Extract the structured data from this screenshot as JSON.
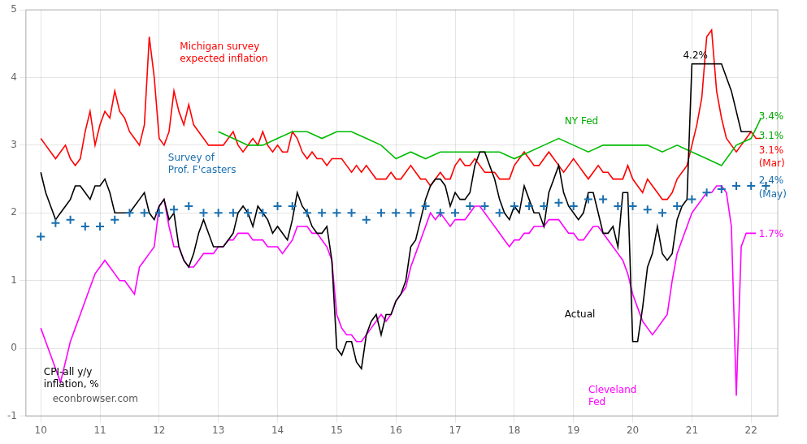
{
  "chart_data": {
    "type": "line",
    "xlim": [
      9.75,
      22.45
    ],
    "ylim": [
      -1.0,
      5.0
    ],
    "xticks": [
      10,
      11,
      12,
      13,
      14,
      15,
      16,
      17,
      18,
      19,
      20,
      21,
      22
    ],
    "yticks": [
      -1,
      0,
      1,
      2,
      3,
      4,
      5
    ],
    "grid": true,
    "series": [
      {
        "color": "red",
        "x": [
          10.0,
          10.083,
          10.167,
          10.25,
          10.333,
          10.417,
          10.5,
          10.583,
          10.667,
          10.75,
          10.833,
          10.917,
          11.0,
          11.083,
          11.167,
          11.25,
          11.333,
          11.417,
          11.5,
          11.583,
          11.667,
          11.75,
          11.833,
          11.917,
          12.0,
          12.083,
          12.167,
          12.25,
          12.333,
          12.417,
          12.5,
          12.583,
          12.667,
          12.75,
          12.833,
          12.917,
          13.0,
          13.083,
          13.167,
          13.25,
          13.333,
          13.417,
          13.5,
          13.583,
          13.667,
          13.75,
          13.833,
          13.917,
          14.0,
          14.083,
          14.167,
          14.25,
          14.333,
          14.417,
          14.5,
          14.583,
          14.667,
          14.75,
          14.833,
          14.917,
          15.0,
          15.083,
          15.167,
          15.25,
          15.333,
          15.417,
          15.5,
          15.583,
          15.667,
          15.75,
          15.833,
          15.917,
          16.0,
          16.083,
          16.167,
          16.25,
          16.333,
          16.417,
          16.5,
          16.583,
          16.667,
          16.75,
          16.833,
          16.917,
          17.0,
          17.083,
          17.167,
          17.25,
          17.333,
          17.417,
          17.5,
          17.583,
          17.667,
          17.75,
          17.833,
          17.917,
          18.0,
          18.083,
          18.167,
          18.25,
          18.333,
          18.417,
          18.5,
          18.583,
          18.667,
          18.75,
          18.833,
          18.917,
          19.0,
          19.083,
          19.167,
          19.25,
          19.333,
          19.417,
          19.5,
          19.583,
          19.667,
          19.75,
          19.833,
          19.917,
          20.0,
          20.083,
          20.167,
          20.25,
          20.333,
          20.417,
          20.5,
          20.583,
          20.667,
          20.75,
          20.833,
          20.917,
          21.0,
          21.083,
          21.167,
          21.25,
          21.333,
          21.417,
          21.5,
          21.583,
          21.667,
          21.75,
          21.833,
          21.917,
          22.0,
          22.083,
          22.167
        ],
        "values": [
          3.1,
          3.0,
          2.9,
          2.8,
          2.9,
          3.0,
          2.8,
          2.7,
          2.8,
          3.2,
          3.5,
          3.0,
          3.3,
          3.5,
          3.4,
          3.8,
          3.5,
          3.4,
          3.2,
          3.1,
          3.0,
          3.3,
          4.6,
          4.0,
          3.1,
          3.0,
          3.2,
          3.8,
          3.5,
          3.3,
          3.6,
          3.3,
          3.2,
          3.1,
          3.0,
          3.0,
          3.0,
          3.0,
          3.1,
          3.2,
          3.0,
          2.9,
          3.0,
          3.1,
          3.0,
          3.2,
          3.0,
          2.9,
          3.0,
          2.9,
          2.9,
          3.2,
          3.1,
          2.9,
          2.8,
          2.9,
          2.8,
          2.8,
          2.7,
          2.8,
          2.8,
          2.8,
          2.7,
          2.6,
          2.7,
          2.6,
          2.7,
          2.6,
          2.5,
          2.5,
          2.5,
          2.6,
          2.5,
          2.5,
          2.6,
          2.7,
          2.6,
          2.5,
          2.5,
          2.4,
          2.5,
          2.6,
          2.5,
          2.5,
          2.7,
          2.8,
          2.7,
          2.7,
          2.8,
          2.7,
          2.6,
          2.6,
          2.6,
          2.5,
          2.5,
          2.5,
          2.7,
          2.8,
          2.9,
          2.8,
          2.7,
          2.7,
          2.8,
          2.9,
          2.8,
          2.7,
          2.6,
          2.7,
          2.8,
          2.7,
          2.6,
          2.5,
          2.6,
          2.7,
          2.6,
          2.6,
          2.5,
          2.5,
          2.5,
          2.7,
          2.5,
          2.4,
          2.3,
          2.5,
          2.4,
          2.3,
          2.2,
          2.2,
          2.3,
          2.5,
          2.6,
          2.7,
          3.0,
          3.3,
          3.7,
          4.6,
          4.7,
          3.8,
          3.4,
          3.1,
          3.0,
          2.9,
          3.0,
          3.1,
          3.2,
          3.1,
          3.1
        ]
      },
      {
        "color": "#00bb00",
        "x": [
          13.0,
          13.25,
          13.5,
          13.75,
          14.0,
          14.25,
          14.5,
          14.75,
          15.0,
          15.25,
          15.5,
          15.75,
          16.0,
          16.25,
          16.5,
          16.75,
          17.0,
          17.25,
          17.5,
          17.75,
          18.0,
          18.25,
          18.5,
          18.75,
          19.0,
          19.25,
          19.5,
          19.75,
          20.0,
          20.25,
          20.5,
          20.75,
          21.0,
          21.25,
          21.5,
          21.75,
          22.0,
          22.167
        ],
        "values": [
          3.2,
          3.1,
          3.0,
          3.0,
          3.1,
          3.2,
          3.2,
          3.1,
          3.2,
          3.2,
          3.1,
          3.0,
          2.8,
          2.9,
          2.8,
          2.9,
          2.9,
          2.9,
          2.9,
          2.9,
          2.8,
          2.9,
          3.0,
          3.1,
          3.0,
          2.9,
          3.0,
          3.0,
          3.0,
          3.0,
          2.9,
          3.0,
          2.9,
          2.8,
          2.7,
          3.0,
          3.1,
          3.4
        ]
      },
      {
        "color": "magenta",
        "x": [
          10.0,
          10.083,
          10.167,
          10.25,
          10.333,
          10.417,
          10.5,
          10.583,
          10.667,
          10.75,
          10.833,
          10.917,
          11.0,
          11.083,
          11.167,
          11.25,
          11.333,
          11.417,
          11.5,
          11.583,
          11.667,
          11.75,
          11.833,
          11.917,
          12.0,
          12.083,
          12.167,
          12.25,
          12.333,
          12.417,
          12.5,
          12.583,
          12.667,
          12.75,
          12.833,
          12.917,
          13.0,
          13.083,
          13.167,
          13.25,
          13.333,
          13.417,
          13.5,
          13.583,
          13.667,
          13.75,
          13.833,
          13.917,
          14.0,
          14.083,
          14.167,
          14.25,
          14.333,
          14.417,
          14.5,
          14.583,
          14.667,
          14.75,
          14.833,
          14.917,
          15.0,
          15.083,
          15.167,
          15.25,
          15.333,
          15.417,
          15.5,
          15.583,
          15.667,
          15.75,
          15.833,
          15.917,
          16.0,
          16.083,
          16.167,
          16.25,
          16.333,
          16.417,
          16.5,
          16.583,
          16.667,
          16.75,
          16.833,
          16.917,
          17.0,
          17.083,
          17.167,
          17.25,
          17.333,
          17.417,
          17.5,
          17.583,
          17.667,
          17.75,
          17.833,
          17.917,
          18.0,
          18.083,
          18.167,
          18.25,
          18.333,
          18.417,
          18.5,
          18.583,
          18.667,
          18.75,
          18.833,
          18.917,
          19.0,
          19.083,
          19.167,
          19.25,
          19.333,
          19.417,
          19.5,
          19.583,
          19.667,
          19.75,
          19.833,
          19.917,
          20.0,
          20.083,
          20.167,
          20.25,
          20.333,
          20.417,
          20.5,
          20.583,
          20.667,
          20.75,
          20.833,
          20.917,
          21.0,
          21.083,
          21.167,
          21.25,
          21.333,
          21.417,
          21.5,
          21.583,
          21.667,
          21.75,
          21.833,
          21.917,
          22.0,
          22.083
        ],
        "values": [
          0.3,
          0.1,
          -0.1,
          -0.3,
          -0.5,
          -0.2,
          0.1,
          0.3,
          0.5,
          0.7,
          0.9,
          1.1,
          1.2,
          1.3,
          1.2,
          1.1,
          1.0,
          1.0,
          0.9,
          0.8,
          1.2,
          1.3,
          1.4,
          1.5,
          2.1,
          2.2,
          1.8,
          1.5,
          1.5,
          1.3,
          1.2,
          1.2,
          1.3,
          1.4,
          1.4,
          1.4,
          1.5,
          1.5,
          1.6,
          1.6,
          1.7,
          1.7,
          1.7,
          1.6,
          1.6,
          1.6,
          1.5,
          1.5,
          1.5,
          1.4,
          1.5,
          1.6,
          1.8,
          1.8,
          1.8,
          1.7,
          1.7,
          1.6,
          1.5,
          1.3,
          0.5,
          0.3,
          0.2,
          0.2,
          0.1,
          0.1,
          0.2,
          0.3,
          0.4,
          0.5,
          0.4,
          0.5,
          0.7,
          0.8,
          0.9,
          1.2,
          1.4,
          1.6,
          1.8,
          2.0,
          1.9,
          2.0,
          1.9,
          1.8,
          1.9,
          1.9,
          1.9,
          2.0,
          2.1,
          2.1,
          2.0,
          1.9,
          1.8,
          1.7,
          1.6,
          1.5,
          1.6,
          1.6,
          1.7,
          1.7,
          1.8,
          1.8,
          1.8,
          1.9,
          1.9,
          1.9,
          1.8,
          1.7,
          1.7,
          1.6,
          1.6,
          1.7,
          1.8,
          1.8,
          1.7,
          1.6,
          1.5,
          1.4,
          1.3,
          1.1,
          0.8,
          0.6,
          0.4,
          0.3,
          0.2,
          0.3,
          0.4,
          0.5,
          1.0,
          1.4,
          1.6,
          1.8,
          2.0,
          2.1,
          2.2,
          2.3,
          2.3,
          2.4,
          2.4,
          2.3,
          1.8,
          -0.7,
          1.5,
          1.7,
          1.7,
          1.7
        ]
      },
      {
        "color": "black",
        "x": [
          10.0,
          10.083,
          10.167,
          10.25,
          10.333,
          10.417,
          10.5,
          10.583,
          10.667,
          10.75,
          10.833,
          10.917,
          11.0,
          11.083,
          11.167,
          11.25,
          11.333,
          11.417,
          11.5,
          11.583,
          11.667,
          11.75,
          11.833,
          11.917,
          12.0,
          12.083,
          12.167,
          12.25,
          12.333,
          12.417,
          12.5,
          12.583,
          12.667,
          12.75,
          12.833,
          12.917,
          13.0,
          13.083,
          13.167,
          13.25,
          13.333,
          13.417,
          13.5,
          13.583,
          13.667,
          13.75,
          13.833,
          13.917,
          14.0,
          14.083,
          14.167,
          14.25,
          14.333,
          14.417,
          14.5,
          14.583,
          14.667,
          14.75,
          14.833,
          14.917,
          15.0,
          15.083,
          15.167,
          15.25,
          15.333,
          15.417,
          15.5,
          15.583,
          15.667,
          15.75,
          15.833,
          15.917,
          16.0,
          16.083,
          16.167,
          16.25,
          16.333,
          16.417,
          16.5,
          16.583,
          16.667,
          16.75,
          16.833,
          16.917,
          17.0,
          17.083,
          17.167,
          17.25,
          17.333,
          17.417,
          17.5,
          17.583,
          17.667,
          17.75,
          17.833,
          17.917,
          18.0,
          18.083,
          18.167,
          18.25,
          18.333,
          18.417,
          18.5,
          18.583,
          18.667,
          18.75,
          18.833,
          18.917,
          19.0,
          19.083,
          19.167,
          19.25,
          19.333,
          19.417,
          19.5,
          19.583,
          19.667,
          19.75,
          19.833,
          19.917,
          20.0,
          20.083,
          20.167,
          20.25,
          20.333,
          20.417,
          20.5,
          20.583,
          20.667,
          20.75,
          20.833,
          20.917,
          21.0,
          21.083,
          21.167,
          21.25,
          21.333,
          21.5,
          21.667,
          21.833,
          22.0
        ],
        "values": [
          2.6,
          2.3,
          2.1,
          1.9,
          2.0,
          2.1,
          2.2,
          2.4,
          2.4,
          2.3,
          2.2,
          2.4,
          2.4,
          2.5,
          2.3,
          2.0,
          2.0,
          2.0,
          2.0,
          2.1,
          2.2,
          2.3,
          2.0,
          1.9,
          2.1,
          2.2,
          1.9,
          2.0,
          1.5,
          1.3,
          1.2,
          1.4,
          1.7,
          1.9,
          1.7,
          1.5,
          1.5,
          1.5,
          1.6,
          1.7,
          2.0,
          2.1,
          2.0,
          1.8,
          2.1,
          2.0,
          1.9,
          1.7,
          1.8,
          1.7,
          1.6,
          1.9,
          2.3,
          2.1,
          2.0,
          1.8,
          1.7,
          1.7,
          1.8,
          1.3,
          0.0,
          -0.1,
          0.1,
          0.1,
          -0.2,
          -0.3,
          0.2,
          0.4,
          0.5,
          0.2,
          0.5,
          0.5,
          0.7,
          0.8,
          1.0,
          1.5,
          1.6,
          1.9,
          2.2,
          2.4,
          2.5,
          2.5,
          2.4,
          2.1,
          2.3,
          2.2,
          2.2,
          2.3,
          2.7,
          2.9,
          2.9,
          2.7,
          2.5,
          2.2,
          2.0,
          1.9,
          2.1,
          2.0,
          2.4,
          2.2,
          2.0,
          2.0,
          1.8,
          2.3,
          2.5,
          2.7,
          2.3,
          2.1,
          2.0,
          1.9,
          2.0,
          2.3,
          2.3,
          2.0,
          1.7,
          1.7,
          1.8,
          1.5,
          2.3,
          2.3,
          0.1,
          0.1,
          0.6,
          1.2,
          1.4,
          1.8,
          1.4,
          1.3,
          1.4,
          1.9,
          2.1,
          2.2,
          4.2,
          4.2,
          4.2,
          4.2,
          4.2,
          4.2,
          3.8,
          3.2,
          3.2
        ]
      },
      {
        "color": "#1a6faf",
        "marker": "plus",
        "line_style": "none",
        "x": [
          10.0,
          10.25,
          10.5,
          10.75,
          11.0,
          11.25,
          11.5,
          11.75,
          12.0,
          12.25,
          12.5,
          12.75,
          13.0,
          13.25,
          13.5,
          13.75,
          14.0,
          14.25,
          14.5,
          14.75,
          15.0,
          15.25,
          15.5,
          15.75,
          16.0,
          16.25,
          16.5,
          16.75,
          17.0,
          17.25,
          17.5,
          17.75,
          18.0,
          18.25,
          18.5,
          18.75,
          19.0,
          19.25,
          19.5,
          19.75,
          20.0,
          20.25,
          20.5,
          20.75,
          21.0,
          21.25,
          21.5,
          21.75,
          22.0,
          22.25
        ],
        "values": [
          1.65,
          1.85,
          1.9,
          1.8,
          1.8,
          1.9,
          2.0,
          2.0,
          2.0,
          2.05,
          2.1,
          2.0,
          2.0,
          2.0,
          2.0,
          2.0,
          2.1,
          2.1,
          2.0,
          2.0,
          2.0,
          2.0,
          1.9,
          2.0,
          2.0,
          2.0,
          2.1,
          2.0,
          2.0,
          2.1,
          2.1,
          2.0,
          2.1,
          2.1,
          2.1,
          2.15,
          2.1,
          2.2,
          2.2,
          2.1,
          2.1,
          2.05,
          2.0,
          2.1,
          2.2,
          2.3,
          2.35,
          2.4,
          2.4,
          2.4
        ]
      }
    ],
    "annotations": [
      {
        "x": 20.85,
        "y": 4.32,
        "text": "4.2%",
        "color": "black"
      },
      {
        "x": 22.13,
        "y": 3.42,
        "text": "3.4%",
        "color": "#00aa00"
      },
      {
        "x": 22.13,
        "y": 3.13,
        "text": "3.1%",
        "color": "#00aa00"
      },
      {
        "x": 22.13,
        "y": 2.92,
        "text": "3.1%",
        "color": "red"
      },
      {
        "x": 22.13,
        "y": 2.72,
        "text": "(Mar)",
        "color": "red"
      },
      {
        "x": 22.13,
        "y": 2.47,
        "text": "2.4%",
        "color": "#1a6faf"
      },
      {
        "x": 22.13,
        "y": 2.27,
        "text": "(May)",
        "color": "#1a6faf"
      },
      {
        "x": 22.13,
        "y": 1.68,
        "text": "1.7%",
        "color": "magenta"
      },
      {
        "x": 12.35,
        "y": 4.52,
        "text": "Michigan survey\nexpected inflation",
        "color": "red"
      },
      {
        "x": 12.15,
        "y": 2.88,
        "text": "Survey of\nProf. F'casters",
        "color": "#1a6faf"
      },
      {
        "x": 18.85,
        "y": 3.35,
        "text": "NY Fed",
        "color": "#00aa00"
      },
      {
        "x": 18.85,
        "y": 0.5,
        "text": "Actual",
        "color": "black"
      },
      {
        "x": 19.25,
        "y": -0.55,
        "text": "Cleveland\nFed",
        "color": "magenta"
      },
      {
        "x": 10.05,
        "y": -0.28,
        "text": "CPI-all y/y\ninflation, %",
        "color": "black"
      },
      {
        "x": 10.2,
        "y": -0.75,
        "text": "econbrowser.com",
        "color": "#555555"
      }
    ]
  }
}
